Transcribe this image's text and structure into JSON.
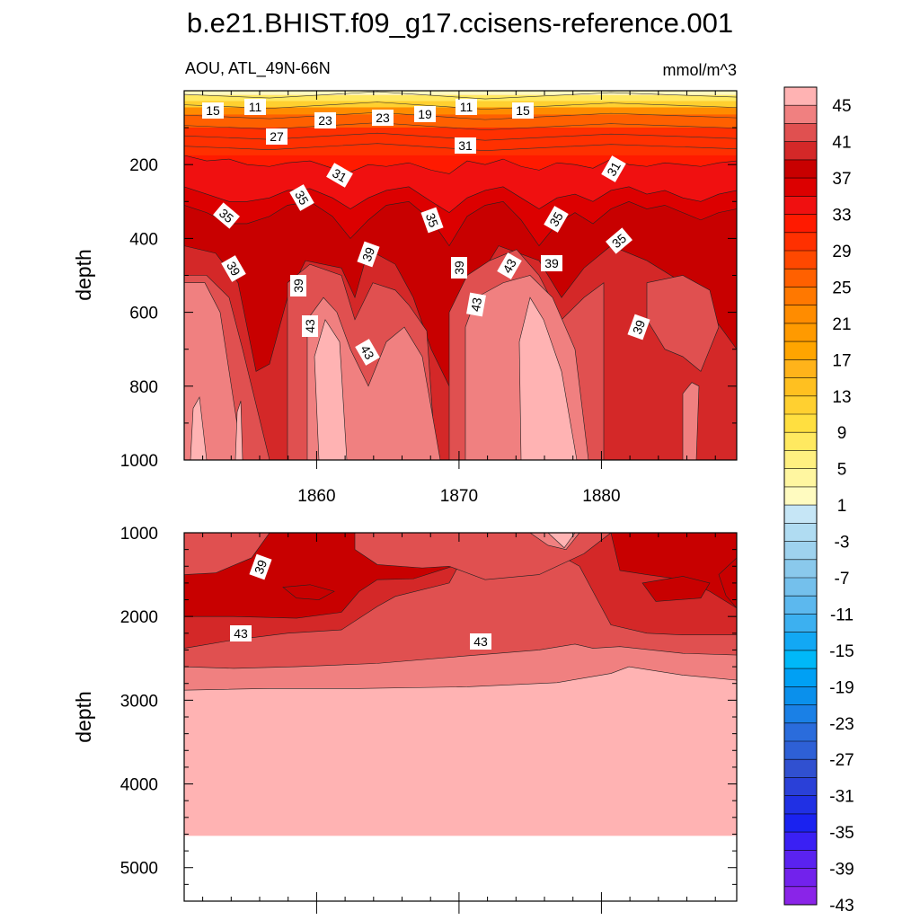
{
  "title": "b.e21.BHIST.f09_g17.ccisens-reference.001",
  "chart_data": {
    "type": "contour",
    "variable_label": "AOU, ATL_49N-66N",
    "units": "mmol/m^3",
    "x_tick_labels": [
      "1860",
      "1870",
      "1880"
    ],
    "x_range": [
      1850.7,
      1889.5
    ],
    "panels": [
      {
        "name": "upper",
        "ylabel": "depth",
        "y_range": [
          0,
          1000
        ],
        "y_tick_labels": [
          "200",
          "400",
          "600",
          "800",
          "1000"
        ],
        "contour_labels": [
          "15",
          "11",
          "23",
          "23",
          "19",
          "11",
          "15",
          "27",
          "31",
          "31",
          "31",
          "35",
          "35",
          "35",
          "35",
          "35",
          "39",
          "39",
          "39",
          "39",
          "39",
          "39",
          "43",
          "43",
          "43",
          "43"
        ]
      },
      {
        "name": "lower",
        "ylabel": "depth",
        "y_range": [
          1000,
          5400
        ],
        "y_tick_labels": [
          "1000",
          "2000",
          "3000",
          "4000",
          "5000"
        ],
        "contour_labels": [
          "39",
          "43",
          "43"
        ],
        "data_bottom_depth": 4620
      }
    ],
    "colorbar": {
      "labels": [
        "45",
        "41",
        "37",
        "33",
        "29",
        "25",
        "21",
        "17",
        "13",
        "9",
        "5",
        "1",
        "-3",
        "-7",
        "-11",
        "-15",
        "-19",
        "-23",
        "-27",
        "-31",
        "-35",
        "-39",
        "-43"
      ],
      "colors": [
        "#ffb3b3",
        "#f08080",
        "#e05050",
        "#d42828",
        "#c80000",
        "#dc0000",
        "#f01010",
        "#ff1a00",
        "#ff3000",
        "#ff4800",
        "#ff6000",
        "#ff7800",
        "#ff8c00",
        "#ff9a00",
        "#ffa500",
        "#ffb31a",
        "#ffc020",
        "#ffd030",
        "#ffdf40",
        "#ffe960",
        "#fff080",
        "#fff6a0",
        "#fffbc0",
        "#c6e6f6",
        "#b0dcf2",
        "#9ed2ee",
        "#8ac9ec",
        "#74c0ec",
        "#5cb8ee",
        "#3cb0f0",
        "#12a8f4",
        "#00b8f8",
        "#00a0f4",
        "#0a90ec",
        "#1a80e6",
        "#2a6cdc",
        "#2e60d6",
        "#3050d0",
        "#2a40d8",
        "#2030e4",
        "#1a22f0",
        "#3a20f4",
        "#5a22f0",
        "#7222ec",
        "#8a24e8"
      ]
    },
    "colors": {
      "c45": "#ffb3b3",
      "c43": "#f08080",
      "c41": "#e05050",
      "c39": "#d42828",
      "c37": "#c80000",
      "c35": "#dc0000",
      "c33": "#f01010",
      "c31": "#ff1a00",
      "c29": "#ff3000",
      "c27": "#ff4800",
      "c25": "#ff6000",
      "c21": "#ff8c00",
      "c15": "#ffb31a",
      "c11": "#ffd030",
      "c7": "#ffe960",
      "c3": "#fffbc0"
    }
  }
}
